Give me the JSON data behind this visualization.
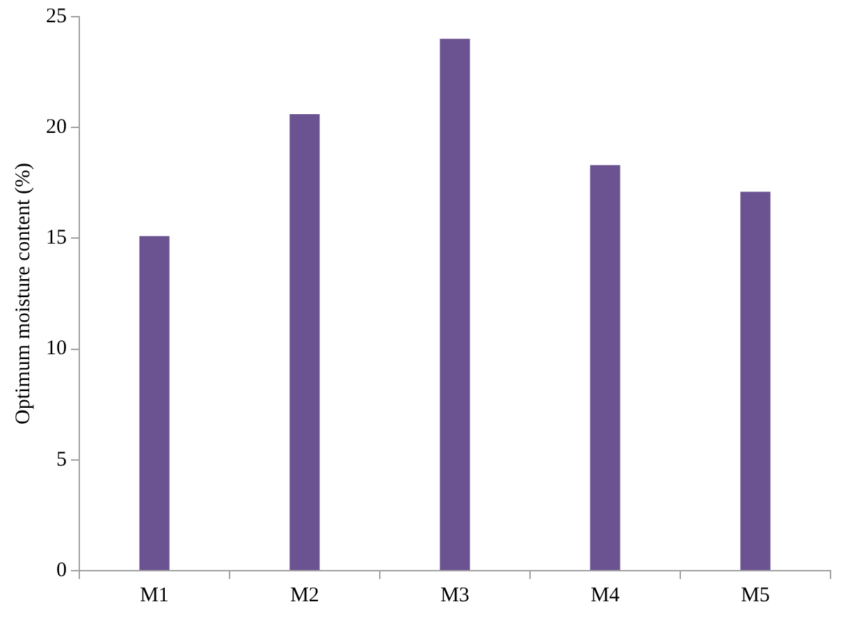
{
  "chart_data": {
    "type": "bar",
    "ylabel": "Optimum moisture content (%)",
    "categories": [
      "M1",
      "M2",
      "M3",
      "M4",
      "M5"
    ],
    "values": [
      15.1,
      20.6,
      24.0,
      18.3,
      17.1
    ],
    "color": "#6b5391",
    "ylim": [
      0,
      25
    ],
    "yticks": [
      0,
      5,
      10,
      15,
      20,
      25
    ],
    "grid": false,
    "legend": false
  }
}
